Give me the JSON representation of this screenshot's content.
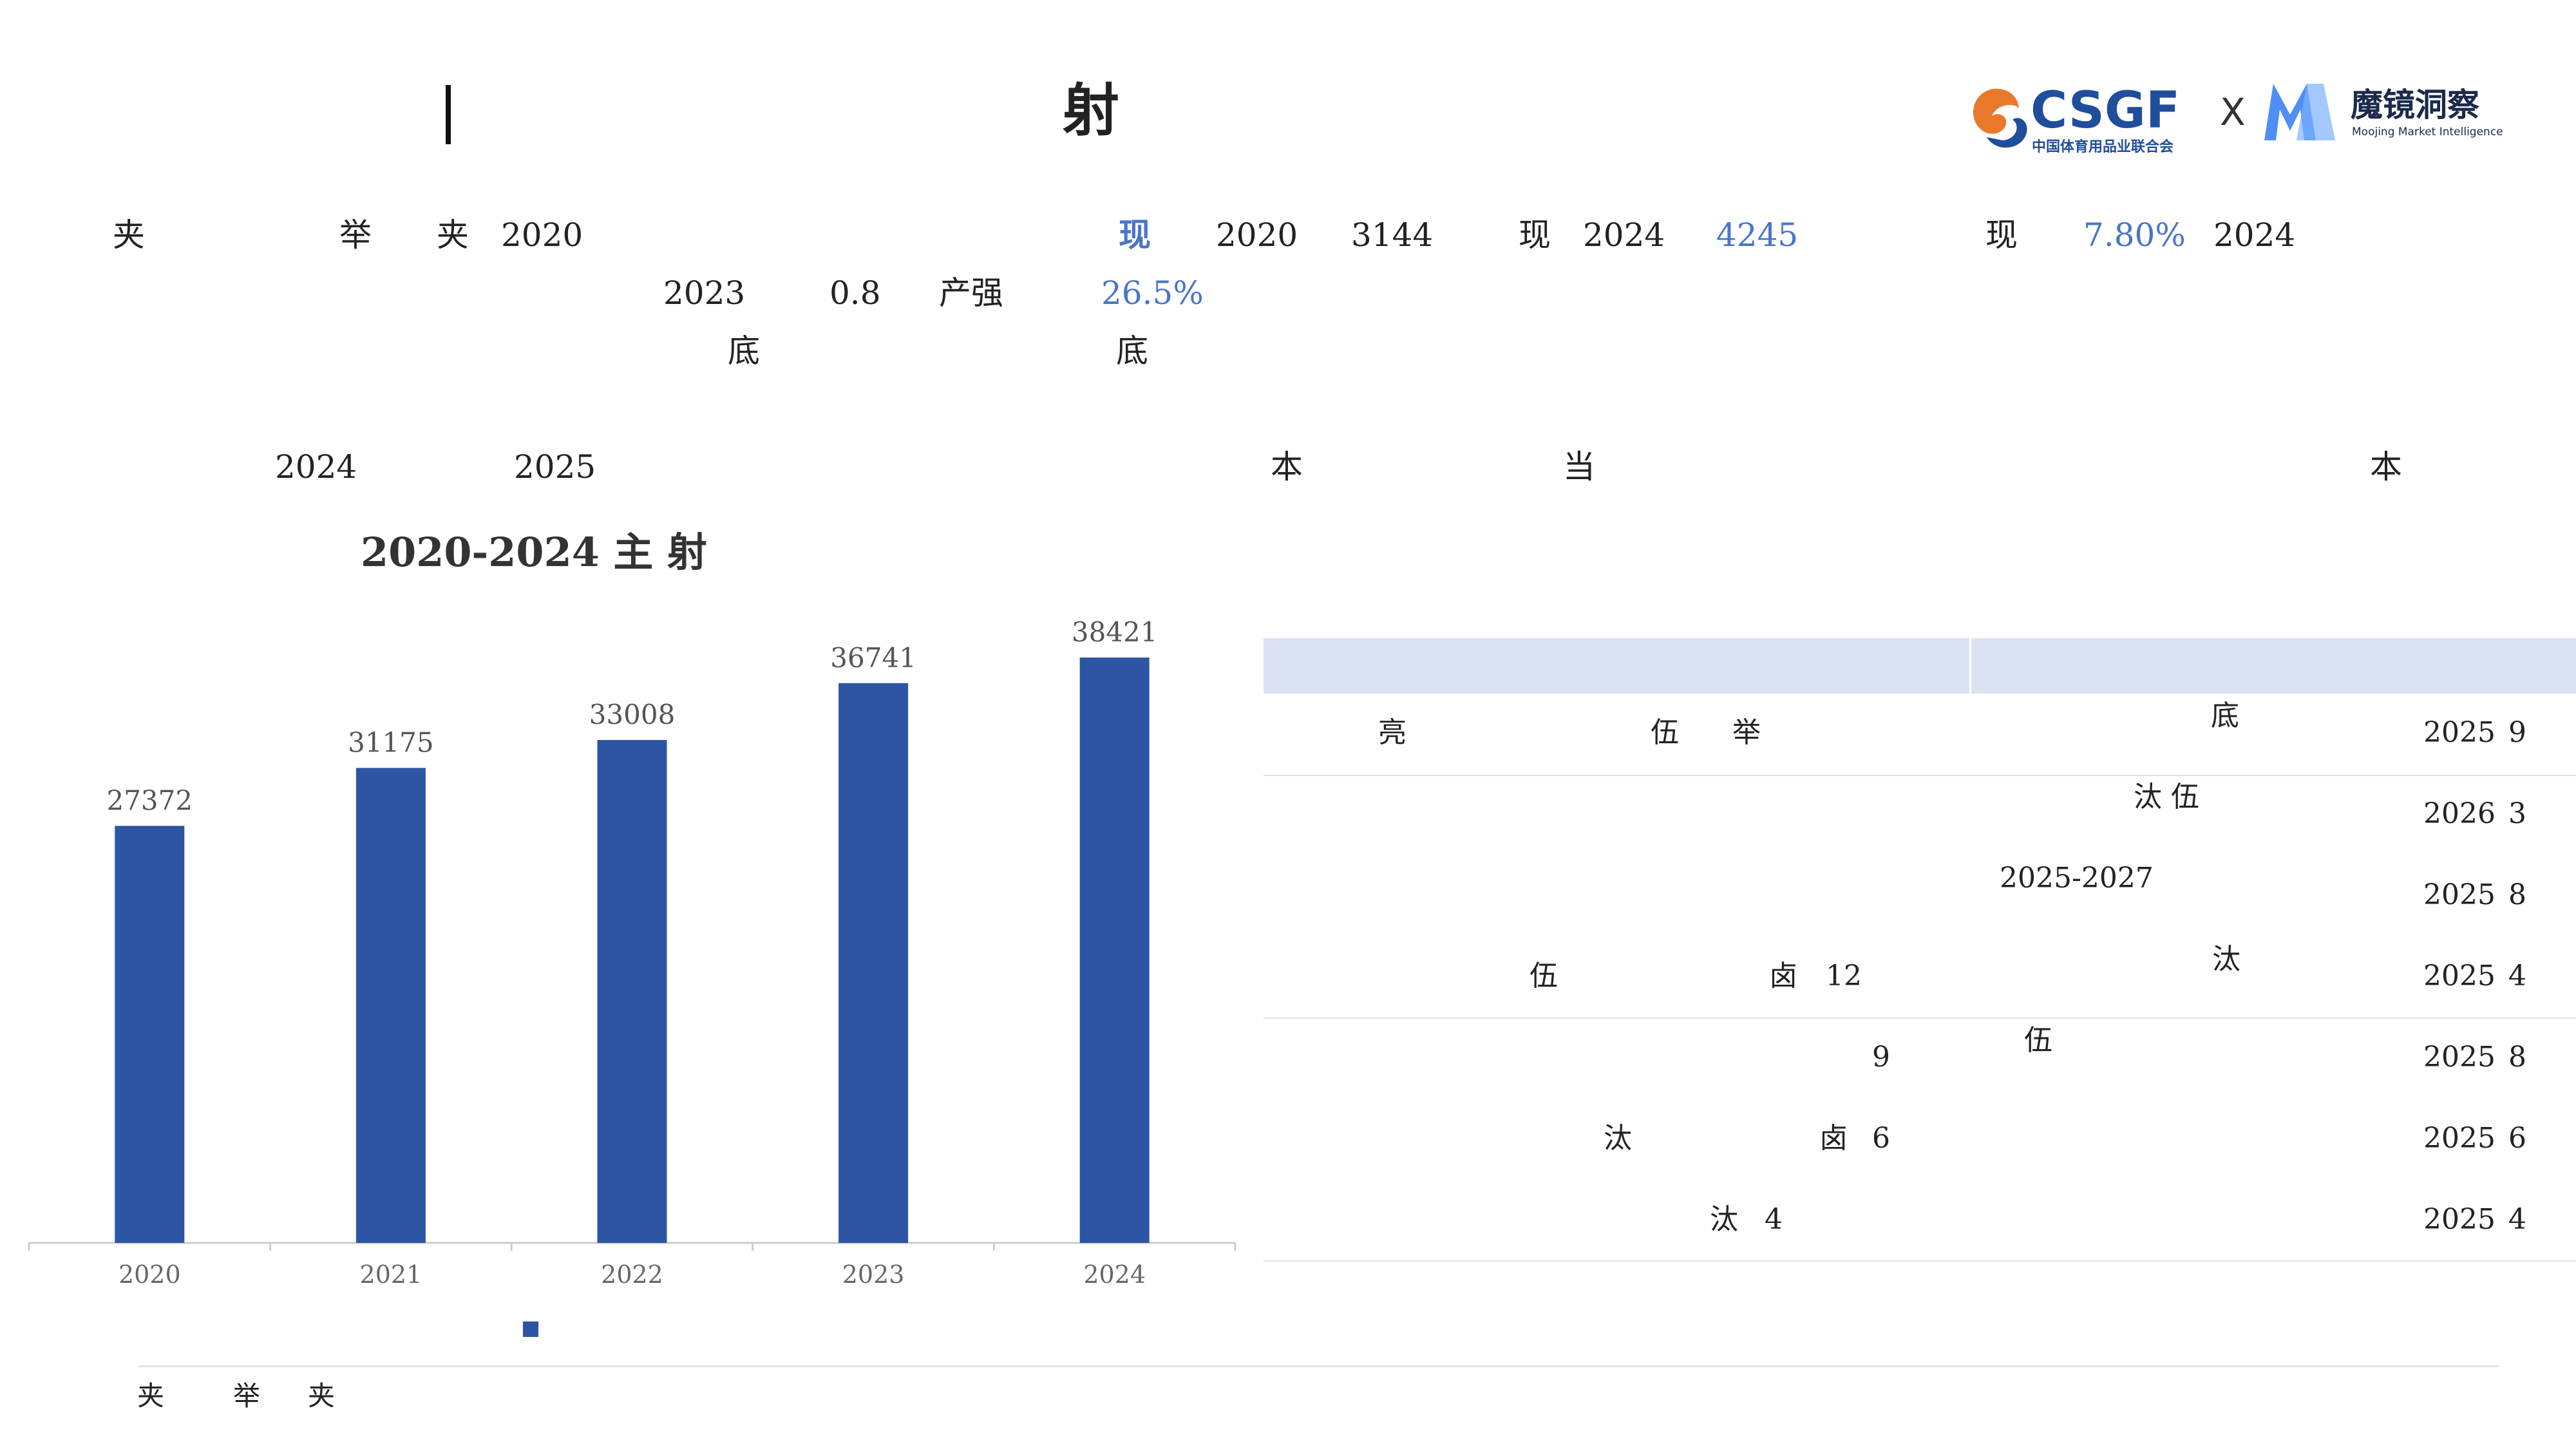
{
  "header": {
    "title": "射",
    "logos": {
      "csgf_text": "CSGF",
      "csgf_subtitle": "中国体育用品业联合会",
      "separator": "X",
      "mojing_text": "魔镜洞察",
      "mojing_subtitle": "Moojing Market Intelligence"
    }
  },
  "summary": {
    "line1": {
      "a": "夹",
      "b": "举",
      "c": "夹",
      "d": "2020",
      "e": "现",
      "f": "2020",
      "g": "3144",
      "h": "现",
      "i": "2024",
      "j": "4245",
      "k": "现",
      "l": "7.80%",
      "m": "2024"
    },
    "line2": {
      "a": "2023",
      "b": "0.8",
      "c": "产强",
      "d": "26.5%"
    },
    "line3": {
      "a": "底",
      "b": "底"
    }
  },
  "left_section": {
    "year_a": "2024",
    "year_b": "2025"
  },
  "right_section": {
    "a": "本",
    "b": "当",
    "c": "本"
  },
  "chart_data": {
    "type": "bar",
    "title": "2020-2024 主 射",
    "categories": [
      "2020",
      "2021",
      "2022",
      "2023",
      "2024"
    ],
    "values": [
      27372,
      31175,
      33008,
      36741,
      38421
    ],
    "ylim": [
      0,
      41000
    ],
    "color": "#2e55a3",
    "grid": false,
    "legend_position": "bottom"
  },
  "table": {
    "rows": [
      {
        "col1": [
          "亮",
          "伍",
          "举"
        ],
        "col2": "底",
        "col3": "2025",
        "col4": "9"
      },
      {
        "col1": [],
        "col2": "汰 伍",
        "col3": "2026",
        "col4": "3"
      },
      {
        "col1": [],
        "col2": "2025-2027",
        "col3": "2025",
        "col4": "8"
      },
      {
        "col1": [
          "伍",
          "卤",
          "12"
        ],
        "col2": "汰",
        "col3": "2025",
        "col4": "4"
      },
      {
        "col1": [
          "9"
        ],
        "col2": "伍",
        "col3": "2025",
        "col4": "8"
      },
      {
        "col1": [
          "汰",
          "卤",
          "6"
        ],
        "col2": "",
        "col3": "2025",
        "col4": "6"
      },
      {
        "col1": [
          "汰",
          "4"
        ],
        "col2": "",
        "col3": "2025",
        "col4": "4"
      }
    ]
  },
  "footer": {
    "a": "夹",
    "b": "举",
    "c": "夹"
  },
  "colors": {
    "accent_blue": "#4a74c9",
    "bar_blue": "#2e55a3",
    "table_header": "#dbe3f3"
  }
}
